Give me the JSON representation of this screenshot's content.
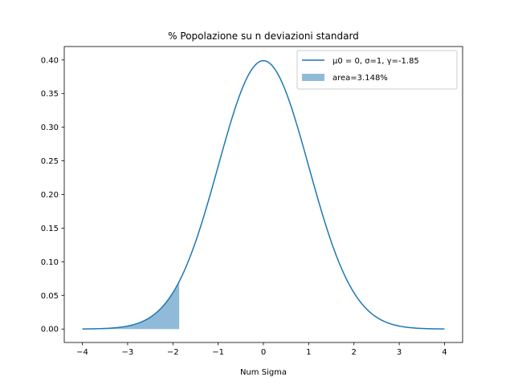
{
  "chart_data": {
    "type": "line",
    "title": "% Popolazione su n deviazioni standard",
    "xlabel": "Num Sigma",
    "ylabel": "",
    "xlim": [
      -4.4,
      4.4
    ],
    "ylim": [
      -0.02,
      0.42
    ],
    "xticks": [
      -4,
      -3,
      -2,
      -1,
      0,
      1,
      2,
      3,
      4
    ],
    "xtick_labels": [
      "−4",
      "−3",
      "−2",
      "−1",
      "0",
      "1",
      "2",
      "3",
      "4"
    ],
    "yticks": [
      0.0,
      0.05,
      0.1,
      0.15,
      0.2,
      0.25,
      0.3,
      0.35,
      0.4
    ],
    "ytick_labels": [
      "0.00",
      "0.05",
      "0.10",
      "0.15",
      "0.20",
      "0.25",
      "0.30",
      "0.35",
      "0.40"
    ],
    "grid": false,
    "legend_position": "top-right",
    "series": [
      {
        "name": "μ0 = 0, σ=1, γ=-1.85",
        "kind": "line",
        "color": "#1f77b4",
        "mu": 0,
        "sigma": 1,
        "x_range": [
          -4,
          4
        ]
      },
      {
        "name": "area=3.148%",
        "kind": "area",
        "color": "#1f77b4",
        "opacity": 0.5,
        "x_range": [
          -4,
          -1.86
        ],
        "area_percent": 3.148
      }
    ]
  }
}
